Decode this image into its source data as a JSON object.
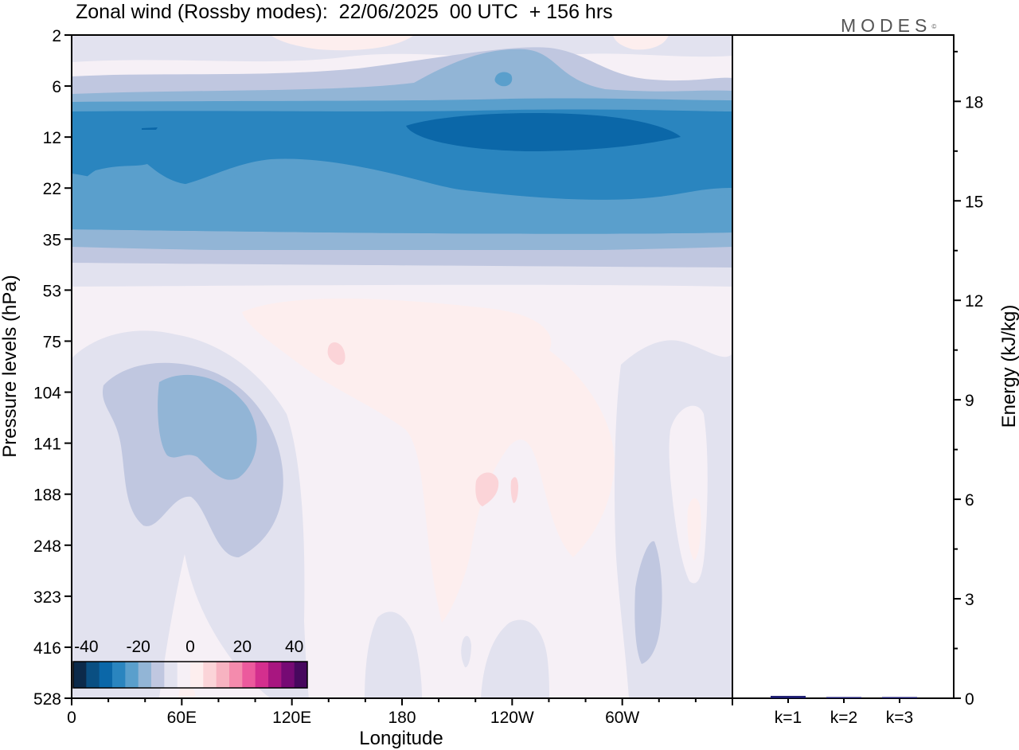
{
  "title": "Zonal wind (Rossby modes):  22/06/2025  00 UTC  + 156 hrs",
  "logo": {
    "text": "MODES",
    "mark": "©"
  },
  "chart_data": [
    {
      "type": "heatmap",
      "title": "Zonal wind (Rossby modes):  22/06/2025  00 UTC  + 156 hrs",
      "xlabel": "Longitude",
      "ylabel": "Pressure levels (hPa)",
      "x_ticks": [
        "0",
        "60E",
        "120E",
        "180",
        "120W",
        "60W"
      ],
      "y_ticks": [
        "2",
        "6",
        "12",
        "22",
        "35",
        "53",
        "75",
        "104",
        "141",
        "188",
        "248",
        "323",
        "416",
        "528"
      ],
      "y_scale": "log",
      "ylim": [
        528,
        2
      ],
      "colorbar": {
        "tick_labels": [
          "-40",
          "-20",
          "0",
          "20",
          "40"
        ],
        "range": [
          -45,
          45
        ],
        "placement": "bottom-left",
        "colors": [
          "#0c2a4a",
          "#0a4f82",
          "#0b67a8",
          "#2a85bf",
          "#5a9fcc",
          "#92b5d6",
          "#c0c7e0",
          "#e2e2ef",
          "#f6f0f6",
          "#fdeeee",
          "#fbd4d8",
          "#f7b3c1",
          "#f48bad",
          "#ec5a9d",
          "#d42f8e",
          "#a81680",
          "#760a74",
          "#47085e"
        ]
      },
      "regions": [
        {
          "band": "2 hPa",
          "value": -4
        },
        {
          "band": "6 hPa",
          "value": -12
        },
        {
          "band": "10-25 hPa",
          "value": -28
        },
        {
          "band": "12 hPa, 120W-180",
          "value": -34
        },
        {
          "band": "35 hPa",
          "value": -12
        },
        {
          "band": "53-416 hPa, 120E-60W",
          "value": 2
        },
        {
          "band": "104-188 hPa, 30E-90E",
          "value": -12
        },
        {
          "band": "416-528 hPa, 180",
          "value": -4
        }
      ]
    },
    {
      "type": "bar",
      "categories": [
        "k=1",
        "k=2",
        "k=3"
      ],
      "values": [
        0.07,
        0.03,
        0.02
      ],
      "ylabel": "Energy (kJ/kg)",
      "ylim": [
        0,
        20
      ],
      "y_ticks": [
        0,
        3,
        6,
        9,
        12,
        15,
        18
      ],
      "bar_color": "#1a1a6e"
    }
  ]
}
